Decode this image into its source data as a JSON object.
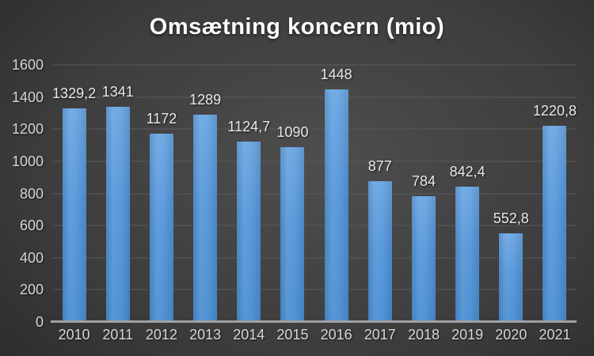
{
  "chart_data": {
    "type": "bar",
    "title": "Omsætning koncern (mio)",
    "categories": [
      "2010",
      "2011",
      "2012",
      "2013",
      "2014",
      "2015",
      "2016",
      "2017",
      "2018",
      "2019",
      "2020",
      "2021"
    ],
    "values": [
      1329.2,
      1341,
      1172,
      1289,
      1124.7,
      1090,
      1448,
      877,
      784,
      842.4,
      552.8,
      1220.8
    ],
    "value_labels": [
      "1329,2",
      "1341",
      "1172",
      "1289",
      "1124,7",
      "1090",
      "1448",
      "877",
      "784",
      "842,4",
      "552,8",
      "1220,8"
    ],
    "xlabel": "",
    "ylabel": "",
    "ylim": [
      0,
      1600
    ],
    "ytick_step": 200,
    "yticks": [
      "0",
      "200",
      "400",
      "600",
      "800",
      "1000",
      "1200",
      "1400",
      "1600"
    ],
    "grid": true,
    "legend": "none",
    "colors": {
      "background_center": "#4e4e4e",
      "background_edge": "#272727",
      "bar_top": "#6ba6e2",
      "bar_bottom": "#4b8fd3",
      "gridline": "#5a5a5a",
      "axis_line": "#a0a0a0",
      "title_text": "#fbfbfb",
      "label_text": "#e8e8e8",
      "tick_text": "#d6d6d6"
    }
  }
}
